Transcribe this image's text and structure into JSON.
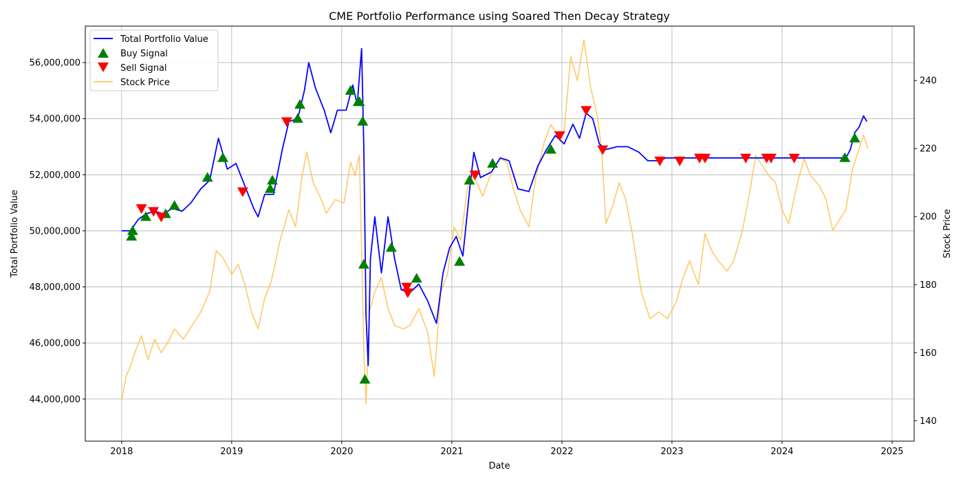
{
  "chart_data": {
    "type": "line",
    "title": "CME Portfolio Performance using Soared Then Decay Strategy",
    "xlabel": "Date",
    "ylabel": "Total Portfolio Value",
    "y2label": "Stock Price",
    "xlim": [
      2017.67,
      2025.2
    ],
    "ylim": [
      42500000,
      57300000
    ],
    "y2lim": [
      134,
      256
    ],
    "x_ticks": [
      2018,
      2019,
      2020,
      2021,
      2022,
      2023,
      2024,
      2025
    ],
    "y_ticks": [
      44000000,
      46000000,
      48000000,
      50000000,
      52000000,
      54000000,
      56000000
    ],
    "y_tick_labels": [
      "44,000,000",
      "46,000,000",
      "48,000,000",
      "50,000,000",
      "52,000,000",
      "54,000,000",
      "56,000,000"
    ],
    "y2_ticks": [
      140,
      160,
      180,
      200,
      220,
      240
    ],
    "grid": true,
    "legend_position": "top-left",
    "series": [
      {
        "name": "Total Portfolio Value",
        "axis": "left",
        "color": "#0000ff",
        "points": [
          [
            2018.0,
            50000000
          ],
          [
            2018.08,
            50000000
          ],
          [
            2018.15,
            50400000
          ],
          [
            2018.22,
            50600000
          ],
          [
            2018.3,
            50700000
          ],
          [
            2018.38,
            50600000
          ],
          [
            2018.46,
            50800000
          ],
          [
            2018.55,
            50700000
          ],
          [
            2018.63,
            51000000
          ],
          [
            2018.72,
            51500000
          ],
          [
            2018.8,
            51800000
          ],
          [
            2018.88,
            53300000
          ],
          [
            2018.96,
            52200000
          ],
          [
            2019.04,
            52400000
          ],
          [
            2019.12,
            51600000
          ],
          [
            2019.2,
            50800000
          ],
          [
            2019.24,
            50500000
          ],
          [
            2019.3,
            51300000
          ],
          [
            2019.38,
            51300000
          ],
          [
            2019.46,
            52900000
          ],
          [
            2019.52,
            53900000
          ],
          [
            2019.6,
            54000000
          ],
          [
            2019.66,
            55000000
          ],
          [
            2019.7,
            56000000
          ],
          [
            2019.76,
            55100000
          ],
          [
            2019.84,
            54300000
          ],
          [
            2019.9,
            53500000
          ],
          [
            2019.96,
            54300000
          ],
          [
            2020.04,
            54300000
          ],
          [
            2020.1,
            55200000
          ],
          [
            2020.14,
            54500000
          ],
          [
            2020.18,
            56500000
          ],
          [
            2020.2,
            53000000
          ],
          [
            2020.22,
            47000000
          ],
          [
            2020.24,
            45200000
          ],
          [
            2020.26,
            49000000
          ],
          [
            2020.3,
            50500000
          ],
          [
            2020.36,
            48500000
          ],
          [
            2020.42,
            50500000
          ],
          [
            2020.48,
            49000000
          ],
          [
            2020.54,
            47900000
          ],
          [
            2020.62,
            47800000
          ],
          [
            2020.7,
            48100000
          ],
          [
            2020.78,
            47500000
          ],
          [
            2020.86,
            46700000
          ],
          [
            2020.92,
            48500000
          ],
          [
            2020.98,
            49400000
          ],
          [
            2021.04,
            49800000
          ],
          [
            2021.1,
            49100000
          ],
          [
            2021.16,
            51400000
          ],
          [
            2021.2,
            52800000
          ],
          [
            2021.26,
            51900000
          ],
          [
            2021.36,
            52100000
          ],
          [
            2021.44,
            52600000
          ],
          [
            2021.52,
            52500000
          ],
          [
            2021.6,
            51500000
          ],
          [
            2021.7,
            51400000
          ],
          [
            2021.78,
            52300000
          ],
          [
            2021.86,
            52900000
          ],
          [
            2021.94,
            53400000
          ],
          [
            2022.02,
            53100000
          ],
          [
            2022.1,
            53800000
          ],
          [
            2022.16,
            53300000
          ],
          [
            2022.22,
            54200000
          ],
          [
            2022.28,
            54000000
          ],
          [
            2022.34,
            53100000
          ],
          [
            2022.4,
            52900000
          ],
          [
            2022.5,
            53000000
          ],
          [
            2022.6,
            53000000
          ],
          [
            2022.7,
            52800000
          ],
          [
            2022.78,
            52500000
          ],
          [
            2022.86,
            52500000
          ],
          [
            2022.95,
            52600000
          ],
          [
            2023.1,
            52600000
          ],
          [
            2023.3,
            52600000
          ],
          [
            2023.5,
            52600000
          ],
          [
            2023.7,
            52600000
          ],
          [
            2023.9,
            52600000
          ],
          [
            2024.1,
            52600000
          ],
          [
            2024.3,
            52600000
          ],
          [
            2024.5,
            52600000
          ],
          [
            2024.58,
            52600000
          ],
          [
            2024.62,
            52900000
          ],
          [
            2024.66,
            53500000
          ],
          [
            2024.7,
            53700000
          ],
          [
            2024.74,
            54100000
          ],
          [
            2024.77,
            53900000
          ]
        ]
      },
      {
        "name": "Stock Price",
        "axis": "right",
        "color": "#ffc04d",
        "points": [
          [
            2018.0,
            146
          ],
          [
            2018.04,
            153
          ],
          [
            2018.08,
            156
          ],
          [
            2018.12,
            160
          ],
          [
            2018.18,
            165
          ],
          [
            2018.24,
            158
          ],
          [
            2018.3,
            164
          ],
          [
            2018.36,
            160
          ],
          [
            2018.42,
            163
          ],
          [
            2018.48,
            167
          ],
          [
            2018.56,
            164
          ],
          [
            2018.64,
            168
          ],
          [
            2018.72,
            172
          ],
          [
            2018.8,
            178
          ],
          [
            2018.86,
            190
          ],
          [
            2018.92,
            188
          ],
          [
            2019.0,
            183
          ],
          [
            2019.06,
            186
          ],
          [
            2019.12,
            180
          ],
          [
            2019.18,
            172
          ],
          [
            2019.24,
            167
          ],
          [
            2019.3,
            176
          ],
          [
            2019.36,
            181
          ],
          [
            2019.44,
            193
          ],
          [
            2019.52,
            202
          ],
          [
            2019.58,
            197
          ],
          [
            2019.64,
            212
          ],
          [
            2019.68,
            219
          ],
          [
            2019.74,
            210
          ],
          [
            2019.8,
            206
          ],
          [
            2019.86,
            201
          ],
          [
            2019.94,
            205
          ],
          [
            2020.02,
            204
          ],
          [
            2020.08,
            216
          ],
          [
            2020.12,
            212
          ],
          [
            2020.16,
            218
          ],
          [
            2020.18,
            190
          ],
          [
            2020.2,
            160
          ],
          [
            2020.22,
            145
          ],
          [
            2020.25,
            172
          ],
          [
            2020.3,
            178
          ],
          [
            2020.36,
            182
          ],
          [
            2020.42,
            173
          ],
          [
            2020.48,
            168
          ],
          [
            2020.56,
            167
          ],
          [
            2020.62,
            168
          ],
          [
            2020.7,
            173
          ],
          [
            2020.78,
            166
          ],
          [
            2020.84,
            153
          ],
          [
            2020.9,
            178
          ],
          [
            2020.96,
            183
          ],
          [
            2021.02,
            197
          ],
          [
            2021.08,
            193
          ],
          [
            2021.14,
            208
          ],
          [
            2021.2,
            212
          ],
          [
            2021.28,
            206
          ],
          [
            2021.36,
            213
          ],
          [
            2021.44,
            217
          ],
          [
            2021.5,
            216
          ],
          [
            2021.56,
            208
          ],
          [
            2021.62,
            202
          ],
          [
            2021.7,
            197
          ],
          [
            2021.76,
            211
          ],
          [
            2021.84,
            222
          ],
          [
            2021.9,
            227
          ],
          [
            2021.96,
            224
          ],
          [
            2022.02,
            225
          ],
          [
            2022.08,
            247
          ],
          [
            2022.14,
            240
          ],
          [
            2022.2,
            252
          ],
          [
            2022.26,
            238
          ],
          [
            2022.32,
            230
          ],
          [
            2022.36,
            220
          ],
          [
            2022.4,
            198
          ],
          [
            2022.46,
            203
          ],
          [
            2022.52,
            210
          ],
          [
            2022.58,
            205
          ],
          [
            2022.64,
            195
          ],
          [
            2022.72,
            178
          ],
          [
            2022.8,
            170
          ],
          [
            2022.88,
            172
          ],
          [
            2022.96,
            170
          ],
          [
            2023.04,
            175
          ],
          [
            2023.1,
            182
          ],
          [
            2023.16,
            187
          ],
          [
            2023.24,
            180
          ],
          [
            2023.3,
            195
          ],
          [
            2023.36,
            190
          ],
          [
            2023.42,
            187
          ],
          [
            2023.5,
            184
          ],
          [
            2023.56,
            187
          ],
          [
            2023.64,
            196
          ],
          [
            2023.7,
            206
          ],
          [
            2023.76,
            218
          ],
          [
            2023.82,
            215
          ],
          [
            2023.88,
            212
          ],
          [
            2023.94,
            210
          ],
          [
            2024.0,
            202
          ],
          [
            2024.06,
            198
          ],
          [
            2024.14,
            210
          ],
          [
            2024.2,
            217
          ],
          [
            2024.26,
            212
          ],
          [
            2024.34,
            209
          ],
          [
            2024.4,
            205
          ],
          [
            2024.46,
            196
          ],
          [
            2024.52,
            199
          ],
          [
            2024.58,
            202
          ],
          [
            2024.64,
            214
          ],
          [
            2024.7,
            220
          ],
          [
            2024.74,
            224
          ],
          [
            2024.78,
            220
          ]
        ]
      }
    ],
    "buy_signals": {
      "name": "Buy Signal",
      "color": "#008000",
      "points": [
        [
          2018.09,
          49800000
        ],
        [
          2018.1,
          50000000
        ],
        [
          2018.22,
          50500000
        ],
        [
          2018.4,
          50600000
        ],
        [
          2018.48,
          50900000
        ],
        [
          2018.78,
          51900000
        ],
        [
          2018.92,
          52600000
        ],
        [
          2019.35,
          51500000
        ],
        [
          2019.37,
          51800000
        ],
        [
          2019.6,
          54000000
        ],
        [
          2019.62,
          54500000
        ],
        [
          2020.08,
          55000000
        ],
        [
          2020.15,
          54600000
        ],
        [
          2020.16,
          54600000
        ],
        [
          2020.19,
          53900000
        ],
        [
          2020.2,
          48800000
        ],
        [
          2020.21,
          44700000
        ],
        [
          2020.45,
          49400000
        ],
        [
          2020.68,
          48300000
        ],
        [
          2021.07,
          48900000
        ],
        [
          2021.16,
          51800000
        ],
        [
          2021.37,
          52400000
        ],
        [
          2021.9,
          52900000
        ],
        [
          2024.57,
          52600000
        ],
        [
          2024.66,
          53300000
        ]
      ]
    },
    "sell_signals": {
      "name": "Sell Signal",
      "color": "#ff0000",
      "points": [
        [
          2018.18,
          50800000
        ],
        [
          2018.29,
          50700000
        ],
        [
          2018.36,
          50500000
        ],
        [
          2019.1,
          51400000
        ],
        [
          2019.5,
          53900000
        ],
        [
          2020.59,
          48000000
        ],
        [
          2020.6,
          47800000
        ],
        [
          2021.21,
          52000000
        ],
        [
          2021.98,
          53400000
        ],
        [
          2022.22,
          54300000
        ],
        [
          2022.37,
          52900000
        ],
        [
          2022.89,
          52500000
        ],
        [
          2023.07,
          52500000
        ],
        [
          2023.25,
          52600000
        ],
        [
          2023.3,
          52600000
        ],
        [
          2023.67,
          52600000
        ],
        [
          2023.86,
          52600000
        ],
        [
          2023.9,
          52600000
        ],
        [
          2024.11,
          52600000
        ]
      ]
    }
  }
}
